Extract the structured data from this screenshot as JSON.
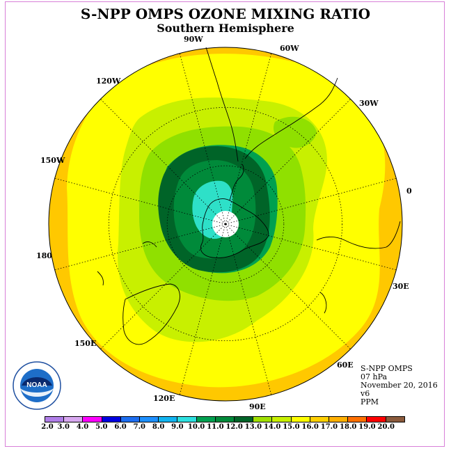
{
  "title": "S-NPP OMPS OZONE MIXING RATIO",
  "subtitle": "Southern Hemisphere",
  "longitude_labels": [
    {
      "text": "90W",
      "id": "lon-90w"
    },
    {
      "text": "60W",
      "id": "lon-60w"
    },
    {
      "text": "120W",
      "id": "lon-120w"
    },
    {
      "text": "30W",
      "id": "lon-30w"
    },
    {
      "text": "150W",
      "id": "lon-150w"
    },
    {
      "text": "0",
      "id": "lon-0"
    },
    {
      "text": "180",
      "id": "lon-180"
    },
    {
      "text": "30E",
      "id": "lon-30e"
    },
    {
      "text": "150E",
      "id": "lon-150e"
    },
    {
      "text": "60E",
      "id": "lon-60e"
    },
    {
      "text": "120E",
      "id": "lon-120e"
    },
    {
      "text": "90E",
      "id": "lon-90e"
    }
  ],
  "info": {
    "instrument": "S-NPP OMPS",
    "pressure": "07 hPa",
    "date": "November 20, 2016",
    "version": "v6",
    "units": "PPM"
  },
  "logo_text": "NOAA",
  "colorbar": {
    "ticks": [
      "2.0",
      "3.0",
      "4.0",
      "5.0",
      "6.0",
      "7.0",
      "8.0",
      "9.0",
      "10.0",
      "11.0",
      "12.0",
      "13.0",
      "14.0",
      "15.0",
      "16.0",
      "17.0",
      "18.0",
      "19.0",
      "20.0"
    ],
    "colors": [
      "#b07ee8",
      "#d8a8f0",
      "#ff00ff",
      "#0000e0",
      "#1e6ef0",
      "#1e90ff",
      "#12b4f0",
      "#2ee0e0",
      "#00a050",
      "#008a3a",
      "#006428",
      "#a0e000",
      "#c8f000",
      "#ffff00",
      "#ffd000",
      "#ffb000",
      "#ff7000",
      "#ff0000",
      "#8b5a3c"
    ]
  },
  "map_colors": {
    "outer": "#ffc800",
    "yellow": "#ffff00",
    "lime": "#c8f000",
    "green1": "#90e000",
    "green2": "#00a050",
    "green3": "#006428",
    "cyan": "#2ee0c8",
    "pole": "#ffffff"
  }
}
